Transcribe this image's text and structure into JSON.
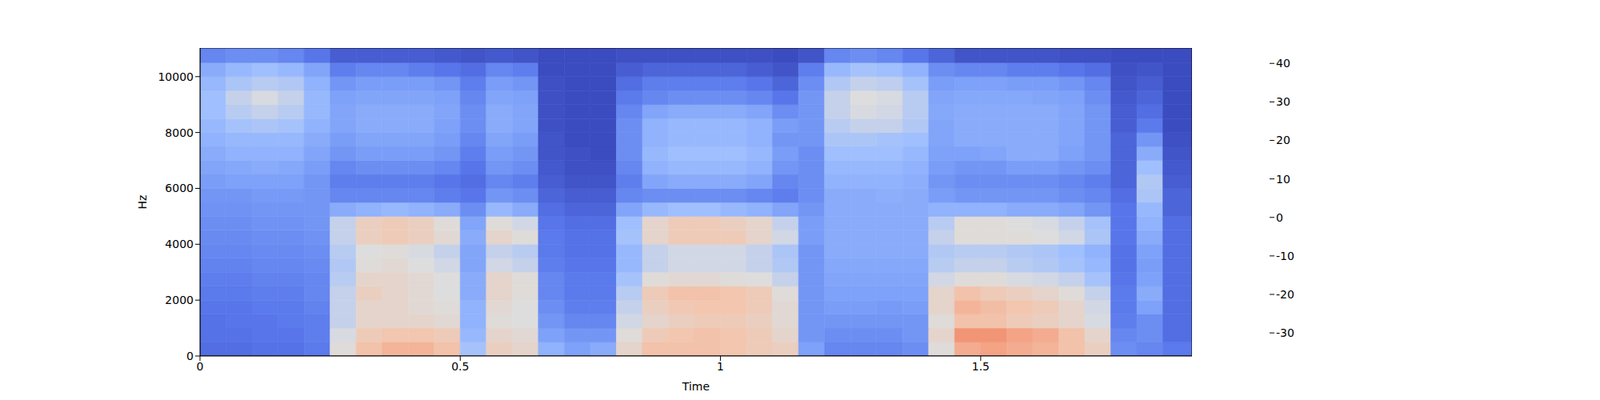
{
  "chart_data": {
    "type": "heatmap",
    "xlabel": "Time",
    "ylabel": "Hz",
    "color": "coolwarm",
    "xlim": [
      0,
      1.906
    ],
    "xticks": [
      0,
      0.5,
      1,
      1.5
    ],
    "ylim": [
      0,
      11025
    ],
    "yticks": [
      0,
      2000,
      4000,
      6000,
      8000,
      10000
    ],
    "x_bins": [
      0,
      0.05,
      0.1,
      0.15,
      0.2,
      0.25,
      0.3,
      0.35,
      0.4,
      0.45,
      0.5,
      0.55,
      0.6,
      0.65,
      0.7,
      0.75,
      0.8,
      0.85,
      0.9,
      0.95,
      1.0,
      1.05,
      1.1,
      1.15,
      1.2,
      1.25,
      1.3,
      1.35,
      1.4,
      1.45,
      1.5,
      1.55,
      1.6,
      1.65,
      1.7,
      1.75,
      1.8,
      1.85,
      1.906
    ],
    "y_bins": [
      0,
      500,
      1000,
      1500,
      2000,
      2500,
      3000,
      3500,
      4000,
      4500,
      5000,
      5500,
      6000,
      6500,
      7000,
      7500,
      8000,
      8500,
      9000,
      9500,
      10000,
      10500,
      11025
    ],
    "cells": [
      [
        -28,
        -28,
        -27,
        -27,
        -25,
        5,
        15,
        18,
        18,
        15,
        -5,
        10,
        8,
        -10,
        -15,
        -12,
        8,
        15,
        15,
        15,
        14,
        12,
        10,
        -15,
        -22,
        -22,
        -22,
        -20,
        5,
        20,
        22,
        20,
        18,
        15,
        10,
        -20,
        -22,
        -25
      ],
      [
        -27,
        -27,
        -26,
        -26,
        -24,
        3,
        12,
        14,
        14,
        12,
        -8,
        8,
        6,
        -15,
        -18,
        -18,
        5,
        12,
        14,
        15,
        14,
        12,
        8,
        -18,
        -20,
        -20,
        -20,
        -18,
        8,
        25,
        25,
        22,
        20,
        15,
        8,
        -22,
        -20,
        -28
      ],
      [
        -27,
        -26,
        -26,
        -25,
        -24,
        0,
        8,
        8,
        8,
        6,
        -10,
        5,
        4,
        -18,
        -22,
        -22,
        2,
        8,
        10,
        12,
        12,
        10,
        6,
        -18,
        -18,
        -18,
        -18,
        -18,
        5,
        15,
        15,
        12,
        10,
        8,
        3,
        -24,
        -20,
        -28
      ],
      [
        -26,
        -26,
        -25,
        -25,
        -23,
        0,
        8,
        8,
        6,
        5,
        -10,
        6,
        4,
        -20,
        -24,
        -24,
        0,
        10,
        13,
        14,
        14,
        12,
        6,
        -18,
        -16,
        -16,
        -17,
        -16,
        8,
        18,
        16,
        14,
        12,
        8,
        2,
        -25,
        -15,
        -28
      ],
      [
        -25,
        -25,
        -24,
        -24,
        -22,
        0,
        10,
        8,
        6,
        4,
        -12,
        8,
        5,
        -22,
        -25,
        -25,
        -2,
        12,
        15,
        15,
        14,
        12,
        5,
        -18,
        -15,
        -15,
        -15,
        -15,
        8,
        15,
        12,
        10,
        8,
        5,
        0,
        -25,
        -12,
        -28
      ],
      [
        -24,
        -24,
        -23,
        -23,
        -22,
        -2,
        8,
        8,
        6,
        4,
        -12,
        8,
        5,
        -22,
        -25,
        -25,
        -5,
        5,
        6,
        6,
        5,
        4,
        0,
        -18,
        -14,
        -14,
        -14,
        -14,
        2,
        5,
        5,
        3,
        2,
        0,
        -5,
        -26,
        -15,
        -28
      ],
      [
        -23,
        -23,
        -22,
        -22,
        -21,
        -3,
        5,
        6,
        4,
        2,
        -14,
        2,
        0,
        -24,
        -26,
        -26,
        -8,
        0,
        2,
        2,
        2,
        0,
        -3,
        -18,
        -13,
        -13,
        -13,
        -13,
        -2,
        0,
        0,
        -2,
        -3,
        -5,
        -8,
        -27,
        -16,
        -28
      ],
      [
        -22,
        -22,
        -21,
        -21,
        -20,
        -2,
        4,
        5,
        3,
        0,
        -14,
        0,
        -2,
        -25,
        -27,
        -27,
        -8,
        0,
        2,
        2,
        2,
        0,
        -4,
        -18,
        -12,
        -12,
        -12,
        -12,
        -3,
        -2,
        -2,
        -3,
        -4,
        -6,
        -10,
        -27,
        -15,
        -28
      ],
      [
        -21,
        -21,
        -20,
        -20,
        -19,
        0,
        10,
        12,
        10,
        6,
        -12,
        8,
        5,
        -25,
        -27,
        -27,
        -5,
        8,
        12,
        12,
        12,
        8,
        2,
        -16,
        -12,
        -12,
        -12,
        -12,
        0,
        5,
        5,
        5,
        4,
        2,
        -4,
        -26,
        -12,
        -28
      ],
      [
        -20,
        -20,
        -19,
        -19,
        -18,
        0,
        10,
        12,
        10,
        5,
        -14,
        5,
        2,
        -26,
        -28,
        -28,
        -6,
        8,
        12,
        12,
        10,
        8,
        0,
        -16,
        -12,
        -12,
        -12,
        -12,
        -2,
        5,
        5,
        4,
        3,
        0,
        -5,
        -26,
        -10,
        -28
      ],
      [
        -19,
        -19,
        -18,
        -18,
        -18,
        -12,
        -10,
        -8,
        -10,
        -12,
        -20,
        -8,
        -12,
        -28,
        -30,
        -30,
        -14,
        -8,
        -6,
        -6,
        -8,
        -10,
        -14,
        -18,
        -12,
        -12,
        -12,
        -12,
        -10,
        -10,
        -10,
        -12,
        -12,
        -14,
        -18,
        -26,
        -8,
        -30
      ],
      [
        -18,
        -18,
        -17,
        -17,
        -18,
        -22,
        -22,
        -22,
        -22,
        -24,
        -26,
        -18,
        -20,
        -30,
        -32,
        -32,
        -22,
        -20,
        -20,
        -20,
        -20,
        -22,
        -24,
        -20,
        -12,
        -12,
        -11,
        -12,
        -16,
        -18,
        -18,
        -18,
        -18,
        -20,
        -22,
        -28,
        -4,
        -30
      ],
      [
        -16,
        -15,
        -15,
        -15,
        -18,
        -24,
        -24,
        -24,
        -24,
        -26,
        -28,
        -22,
        -24,
        -32,
        -34,
        -34,
        -24,
        -14,
        -12,
        -12,
        -12,
        -14,
        -22,
        -20,
        -10,
        -10,
        -10,
        -11,
        -18,
        -20,
        -20,
        -20,
        -20,
        -22,
        -24,
        -30,
        -3,
        -32
      ],
      [
        -14,
        -13,
        -12,
        -13,
        -16,
        -22,
        -20,
        -20,
        -20,
        -22,
        -26,
        -18,
        -20,
        -33,
        -35,
        -35,
        -22,
        -10,
        -8,
        -8,
        -8,
        -10,
        -18,
        -20,
        -8,
        -8,
        -8,
        -10,
        -16,
        -18,
        -18,
        -16,
        -16,
        -18,
        -20,
        -30,
        -6,
        -33
      ],
      [
        -12,
        -10,
        -10,
        -10,
        -14,
        -18,
        -16,
        -16,
        -16,
        -18,
        -24,
        -16,
        -18,
        -34,
        -35,
        -36,
        -20,
        -8,
        -6,
        -6,
        -6,
        -8,
        -16,
        -20,
        -6,
        -6,
        -6,
        -8,
        -15,
        -15,
        -14,
        -12,
        -12,
        -15,
        -18,
        -30,
        -12,
        -34
      ],
      [
        -10,
        -8,
        -8,
        -8,
        -12,
        -16,
        -14,
        -14,
        -14,
        -16,
        -22,
        -14,
        -16,
        -34,
        -36,
        -36,
        -20,
        -10,
        -8,
        -8,
        -8,
        -10,
        -18,
        -18,
        -4,
        -4,
        -5,
        -6,
        -14,
        -12,
        -12,
        -12,
        -12,
        -14,
        -18,
        -30,
        -18,
        -35
      ],
      [
        -8,
        -5,
        -4,
        -5,
        -10,
        -14,
        -12,
        -12,
        -12,
        -15,
        -20,
        -12,
        -14,
        -35,
        -36,
        -36,
        -20,
        -10,
        -8,
        -8,
        -8,
        -10,
        -16,
        -18,
        -2,
        0,
        0,
        -3,
        -14,
        -12,
        -12,
        -12,
        -12,
        -14,
        -18,
        -32,
        -25,
        -36
      ],
      [
        -6,
        -2,
        0,
        -2,
        -8,
        -14,
        -12,
        -12,
        -12,
        -14,
        -20,
        -12,
        -14,
        -35,
        -36,
        -36,
        -22,
        -14,
        -12,
        -12,
        -12,
        -14,
        -20,
        -18,
        0,
        3,
        2,
        -2,
        -13,
        -12,
        -12,
        -12,
        -12,
        -14,
        -18,
        -32,
        -28,
        -36
      ],
      [
        -6,
        0,
        3,
        0,
        -8,
        -15,
        -14,
        -14,
        -14,
        -15,
        -22,
        -14,
        -15,
        -35,
        -36,
        -36,
        -25,
        -22,
        -20,
        -20,
        -20,
        -22,
        -26,
        -18,
        0,
        4,
        3,
        -2,
        -14,
        -13,
        -13,
        -13,
        -14,
        -15,
        -20,
        -33,
        -30,
        -36
      ],
      [
        -8,
        -4,
        -2,
        -3,
        -10,
        -18,
        -16,
        -16,
        -16,
        -18,
        -24,
        -16,
        -18,
        -35,
        -36,
        -36,
        -28,
        -24,
        -24,
        -24,
        -24,
        -26,
        -30,
        -20,
        -3,
        0,
        -1,
        -5,
        -16,
        -15,
        -15,
        -16,
        -16,
        -18,
        -22,
        -34,
        -32,
        -36
      ],
      [
        -12,
        -8,
        -6,
        -8,
        -14,
        -24,
        -22,
        -22,
        -24,
        -26,
        -28,
        -22,
        -24,
        -36,
        -36,
        -36,
        -32,
        -30,
        -30,
        -30,
        -30,
        -32,
        -34,
        -24,
        -8,
        -5,
        -6,
        -10,
        -20,
        -22,
        -22,
        -24,
        -24,
        -26,
        -28,
        -35,
        -34,
        -36
      ],
      [
        -22,
        -20,
        -20,
        -22,
        -26,
        -32,
        -32,
        -32,
        -32,
        -33,
        -34,
        -33,
        -34,
        -36,
        -36,
        -36,
        -35,
        -35,
        -35,
        -35,
        -35,
        -35,
        -36,
        -34,
        -22,
        -20,
        -22,
        -26,
        -30,
        -34,
        -34,
        -34,
        -34,
        -35,
        -35,
        -36,
        -36,
        -36
      ]
    ],
    "colorbar": {
      "range": [
        -36,
        44
      ],
      "ticks": [
        -30,
        -20,
        -10,
        0,
        10,
        20,
        30,
        40
      ]
    }
  }
}
